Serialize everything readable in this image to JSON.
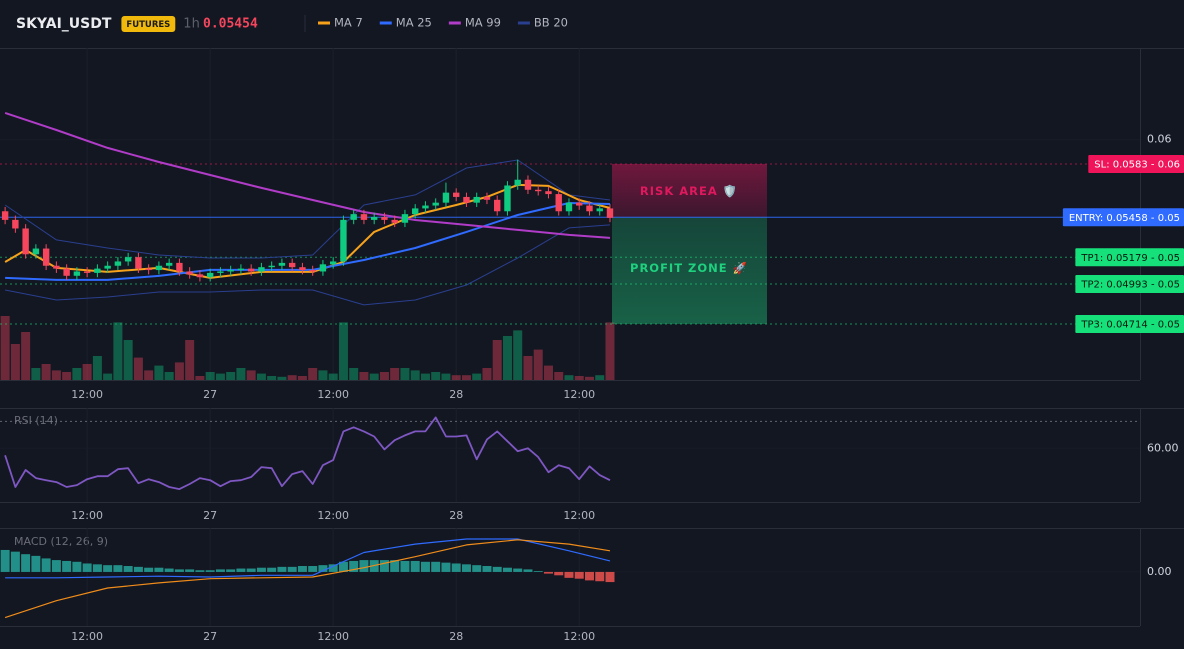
{
  "header": {
    "symbol": "SKYAI_USDT",
    "badge": "FUTURES",
    "interval": "1h",
    "price": 0.05454
  },
  "chart_data": [
    {
      "type": "candlestick",
      "xlim": [
        -0.5,
        110.7
      ],
      "xticks": [
        {
          "value": 8,
          "label": "12:00"
        },
        {
          "value": 20,
          "label": "27"
        },
        {
          "value": 32,
          "label": "12:00"
        },
        {
          "value": 44,
          "label": "28"
        },
        {
          "value": 56,
          "label": "12:00"
        }
      ],
      "ylim": [
        0.04323,
        0.06639
      ],
      "yticks": [
        0.06
      ],
      "grid": true,
      "up_color": "#0ecb81",
      "down_color": "#f6465d",
      "open": [
        0.055,
        0.0544,
        0.0538,
        0.052,
        0.0524,
        0.0512,
        0.051,
        0.0505,
        0.0508,
        0.0507,
        0.051,
        0.0512,
        0.0515,
        0.0518,
        0.051,
        0.0509,
        0.0512,
        0.0514,
        0.0508,
        0.0506,
        0.0504,
        0.0507,
        0.0508,
        0.0509,
        0.051,
        0.0508,
        0.0511,
        0.0512,
        0.0514,
        0.0511,
        0.0509,
        0.0508,
        0.0513,
        0.0515,
        0.0544,
        0.0548,
        0.0544,
        0.0546,
        0.0544,
        0.0542,
        0.0548,
        0.0552,
        0.0554,
        0.0556,
        0.0563,
        0.056,
        0.0556,
        0.056,
        0.0558,
        0.055,
        0.0568,
        0.0572,
        0.0565,
        0.0564,
        0.0562,
        0.055,
        0.0556,
        0.0554,
        0.055,
        0.0552
      ],
      "high": [
        0.0553,
        0.0547,
        0.0541,
        0.0527,
        0.0527,
        0.0515,
        0.0513,
        0.0511,
        0.0511,
        0.0513,
        0.0515,
        0.0518,
        0.0521,
        0.0521,
        0.0513,
        0.0515,
        0.0517,
        0.0517,
        0.0511,
        0.0509,
        0.051,
        0.0511,
        0.0512,
        0.0513,
        0.0513,
        0.0514,
        0.0515,
        0.0517,
        0.0517,
        0.0514,
        0.0512,
        0.0516,
        0.0518,
        0.0547,
        0.0551,
        0.0551,
        0.0549,
        0.0549,
        0.0547,
        0.0551,
        0.0555,
        0.0557,
        0.0559,
        0.057,
        0.0566,
        0.0563,
        0.0563,
        0.0563,
        0.0561,
        0.0571,
        0.0586,
        0.0575,
        0.0568,
        0.0567,
        0.0565,
        0.0559,
        0.0559,
        0.0557,
        0.0555,
        0.0555
      ],
      "low": [
        0.0541,
        0.0535,
        0.0517,
        0.0517,
        0.0509,
        0.0507,
        0.0502,
        0.0502,
        0.0504,
        0.0504,
        0.0507,
        0.0509,
        0.0512,
        0.0507,
        0.0506,
        0.0506,
        0.0509,
        0.0505,
        0.0503,
        0.0501,
        0.0501,
        0.0504,
        0.0505,
        0.0506,
        0.0505,
        0.0505,
        0.0508,
        0.0509,
        0.0508,
        0.0506,
        0.0505,
        0.0505,
        0.051,
        0.0512,
        0.0541,
        0.0541,
        0.0541,
        0.0541,
        0.0539,
        0.0539,
        0.0545,
        0.0549,
        0.0551,
        0.0553,
        0.0557,
        0.0553,
        0.0553,
        0.0555,
        0.0547,
        0.0547,
        0.0565,
        0.0562,
        0.0561,
        0.0559,
        0.0547,
        0.0547,
        0.0551,
        0.0547,
        0.0547,
        0.05424
      ],
      "close": [
        0.0544,
        0.0538,
        0.052,
        0.0524,
        0.0512,
        0.051,
        0.0505,
        0.0508,
        0.0507,
        0.051,
        0.0512,
        0.0515,
        0.0518,
        0.051,
        0.0509,
        0.0512,
        0.0514,
        0.0508,
        0.0506,
        0.0504,
        0.0507,
        0.0508,
        0.0509,
        0.051,
        0.0508,
        0.0511,
        0.0512,
        0.0514,
        0.0511,
        0.0509,
        0.0508,
        0.0513,
        0.0515,
        0.0544,
        0.0548,
        0.0544,
        0.0546,
        0.0544,
        0.0542,
        0.0548,
        0.0552,
        0.0554,
        0.0556,
        0.0563,
        0.056,
        0.0556,
        0.056,
        0.0558,
        0.055,
        0.0568,
        0.0572,
        0.0565,
        0.0564,
        0.0562,
        0.055,
        0.0556,
        0.0554,
        0.055,
        0.0552,
        0.05454
      ],
      "volume_lim": [
        0,
        100
      ],
      "volume": [
        80,
        45,
        60,
        15,
        20,
        12,
        10,
        15,
        20,
        30,
        8,
        72,
        50,
        28,
        12,
        18,
        10,
        22,
        50,
        5,
        10,
        8,
        10,
        15,
        12,
        8,
        5,
        4,
        6,
        5,
        15,
        12,
        8,
        72,
        15,
        10,
        8,
        10,
        15,
        15,
        12,
        8,
        10,
        8,
        6,
        6,
        8,
        15,
        50,
        55,
        62,
        30,
        38,
        18,
        10,
        6,
        5,
        4,
        6,
        72
      ],
      "series": [
        {
          "name": "MA 7",
          "color": "#f7a21b",
          "x": [
            0,
            2,
            5,
            10,
            15,
            20,
            25,
            30,
            33,
            36,
            40,
            44,
            47,
            50,
            53,
            56,
            59
          ],
          "values": [
            0.05146,
            0.0523,
            0.05105,
            0.05077,
            0.05105,
            0.05035,
            0.05077,
            0.05077,
            0.05146,
            0.05356,
            0.05474,
            0.05544,
            0.056,
            0.05684,
            0.05677,
            0.05579,
            0.05523
          ]
        },
        {
          "name": "MA 25",
          "color": "#2f6bff",
          "x": [
            0,
            5,
            10,
            15,
            20,
            25,
            30,
            35,
            40,
            45,
            50,
            55,
            59
          ],
          "values": [
            0.05035,
            0.05021,
            0.05021,
            0.05049,
            0.05091,
            0.05091,
            0.05091,
            0.0516,
            0.05244,
            0.05356,
            0.05474,
            0.05558,
            0.05551
          ]
        },
        {
          "name": "MA 99",
          "color": "#b03cc8",
          "x": [
            0,
            5,
            10,
            15,
            20,
            25,
            30,
            35,
            40,
            45,
            50,
            55,
            59
          ],
          "values": [
            0.06186,
            0.06067,
            0.05942,
            0.05844,
            0.05753,
            0.05663,
            0.05579,
            0.05495,
            0.05439,
            0.05405,
            0.0537,
            0.05335,
            0.05314
          ]
        },
        {
          "name": "BB 20",
          "color": "#2a3f8f",
          "x": [
            0,
            5,
            10,
            15,
            20,
            25,
            30,
            35,
            40,
            45,
            50,
            55,
            59
          ],
          "upper": [
            0.05544,
            0.053,
            0.05244,
            0.05195,
            0.05174,
            0.05174,
            0.05195,
            0.05544,
            0.05614,
            0.05802,
            0.05858,
            0.05614,
            0.05579
          ],
          "lower": [
            0.04951,
            0.04881,
            0.04902,
            0.04937,
            0.04937,
            0.04951,
            0.04951,
            0.04847,
            0.04881,
            0.04986,
            0.05174,
            0.05384,
            0.05405
          ]
        }
      ],
      "levels": [
        {
          "label": "SL: 0.0583 - 0.06",
          "value": 0.0583,
          "color": "#f0145a",
          "text_color": "#ffffff",
          "style": "dotted"
        },
        {
          "label": "ENTRY: 0.05458 - 0.05",
          "value": 0.05458,
          "color": "#2f6bff",
          "text_color": "#ffffff",
          "style": "solid"
        },
        {
          "label": "TP1: 0.05179 - 0.05",
          "value": 0.05179,
          "color": "#16e07a",
          "text_color": "#06180e",
          "style": "dotted"
        },
        {
          "label": "TP2: 0.04993 - 0.05",
          "value": 0.04993,
          "color": "#16e07a",
          "text_color": "#06180e",
          "style": "dotted"
        },
        {
          "label": "TP3: 0.04714 - 0.05",
          "value": 0.04714,
          "color": "#16e07a",
          "text_color": "#06180e",
          "style": "dotted"
        }
      ],
      "zones": [
        {
          "label": "RISK AREA 🛡️",
          "from": 0.0583,
          "to": 0.05458,
          "color": "#e0185e"
        },
        {
          "label": "PROFIT ZONE 🚀",
          "from": 0.05458,
          "to": 0.04714,
          "color": "#1fd07f"
        }
      ]
    },
    {
      "type": "line",
      "title": "RSI (14)",
      "xlim": [
        -0.5,
        110.7
      ],
      "xticks": [
        {
          "value": 8,
          "label": "12:00"
        },
        {
          "value": 20,
          "label": "27"
        },
        {
          "value": 32,
          "label": "12:00"
        },
        {
          "value": 44,
          "label": "28"
        },
        {
          "value": 56,
          "label": "12:00"
        }
      ],
      "ylim": [
        40,
        75
      ],
      "yticks": [
        {
          "value": 60,
          "label": "60.00"
        }
      ],
      "levels": [
        70
      ],
      "color": "#7e57c2",
      "values": [
        57.4,
        45.6,
        51.9,
        48.9,
        48.1,
        47.4,
        45.6,
        46.3,
        48.5,
        49.6,
        49.6,
        52.2,
        52.6,
        47.0,
        48.5,
        47.4,
        45.6,
        44.8,
        46.7,
        48.9,
        48.1,
        45.9,
        47.8,
        48.1,
        49.3,
        53.0,
        52.6,
        45.9,
        50.4,
        51.5,
        46.7,
        53.7,
        55.6,
        66.3,
        67.8,
        66.3,
        64.4,
        59.6,
        63.0,
        64.8,
        66.3,
        66.3,
        71.5,
        64.4,
        64.4,
        64.8,
        55.9,
        63.3,
        66.3,
        62.6,
        58.9,
        60.0,
        56.7,
        51.1,
        53.7,
        52.6,
        48.5,
        53.3,
        50.0,
        48.1
      ]
    },
    {
      "type": "macd",
      "title": "MACD (12, 26, 9)",
      "xlim": [
        -0.5,
        110.7
      ],
      "xticks": [
        {
          "value": 8,
          "label": "12:00"
        },
        {
          "value": 20,
          "label": "27"
        },
        {
          "value": 32,
          "label": "12:00"
        },
        {
          "value": 44,
          "label": "28"
        },
        {
          "value": 56,
          "label": "12:00"
        }
      ],
      "ylim": [
        -0.00064,
        0.00052
      ],
      "yticks": [
        {
          "value": 0,
          "label": "0.00"
        }
      ],
      "histogram": {
        "color": "#26a69a",
        "negative_color": "#ef5350",
        "values": [
          0.00026,
          0.00024,
          0.00021,
          0.00019,
          0.00016,
          0.00014,
          0.00013,
          0.00012,
          0.0001,
          9e-05,
          8e-05,
          8e-05,
          7e-05,
          6e-05,
          5e-05,
          5e-05,
          4e-05,
          3e-05,
          3e-05,
          2e-05,
          2e-05,
          3e-05,
          3e-05,
          4e-05,
          4e-05,
          5e-05,
          5e-05,
          6e-05,
          6e-05,
          7e-05,
          7e-05,
          8e-05,
          9e-05,
          0.00012,
          0.00013,
          0.00014,
          0.00014,
          0.00014,
          0.00014,
          0.00013,
          0.00013,
          0.00012,
          0.00012,
          0.00011,
          0.0001,
          9e-05,
          8e-05,
          7e-05,
          6e-05,
          5e-05,
          4e-05,
          3e-05,
          1e-05,
          -2e-05,
          -4e-05,
          -7e-05,
          -8e-05,
          -0.0001,
          -0.00011,
          -0.00012
        ]
      },
      "series": [
        {
          "color": "#2f6bff",
          "x": [
            0,
            5,
            10,
            15,
            20,
            25,
            30,
            35,
            40,
            45,
            50,
            55,
            59
          ],
          "values": [
            -7e-05,
            -7e-05,
            -6e-05,
            -5e-05,
            -6e-05,
            -4e-05,
            -4e-05,
            0.00023,
            0.00033,
            0.00039,
            0.00039,
            0.00025,
            0.00013
          ]
        },
        {
          "color": "#f08c1a",
          "x": [
            0,
            5,
            10,
            15,
            20,
            25,
            30,
            35,
            40,
            45,
            50,
            55,
            59
          ],
          "values": [
            -0.00054,
            -0.00034,
            -0.00019,
            -0.00013,
            -8e-05,
            -7e-05,
            -6e-05,
            5e-05,
            0.00018,
            0.00032,
            0.00038,
            0.00033,
            0.00025
          ]
        }
      ]
    }
  ]
}
